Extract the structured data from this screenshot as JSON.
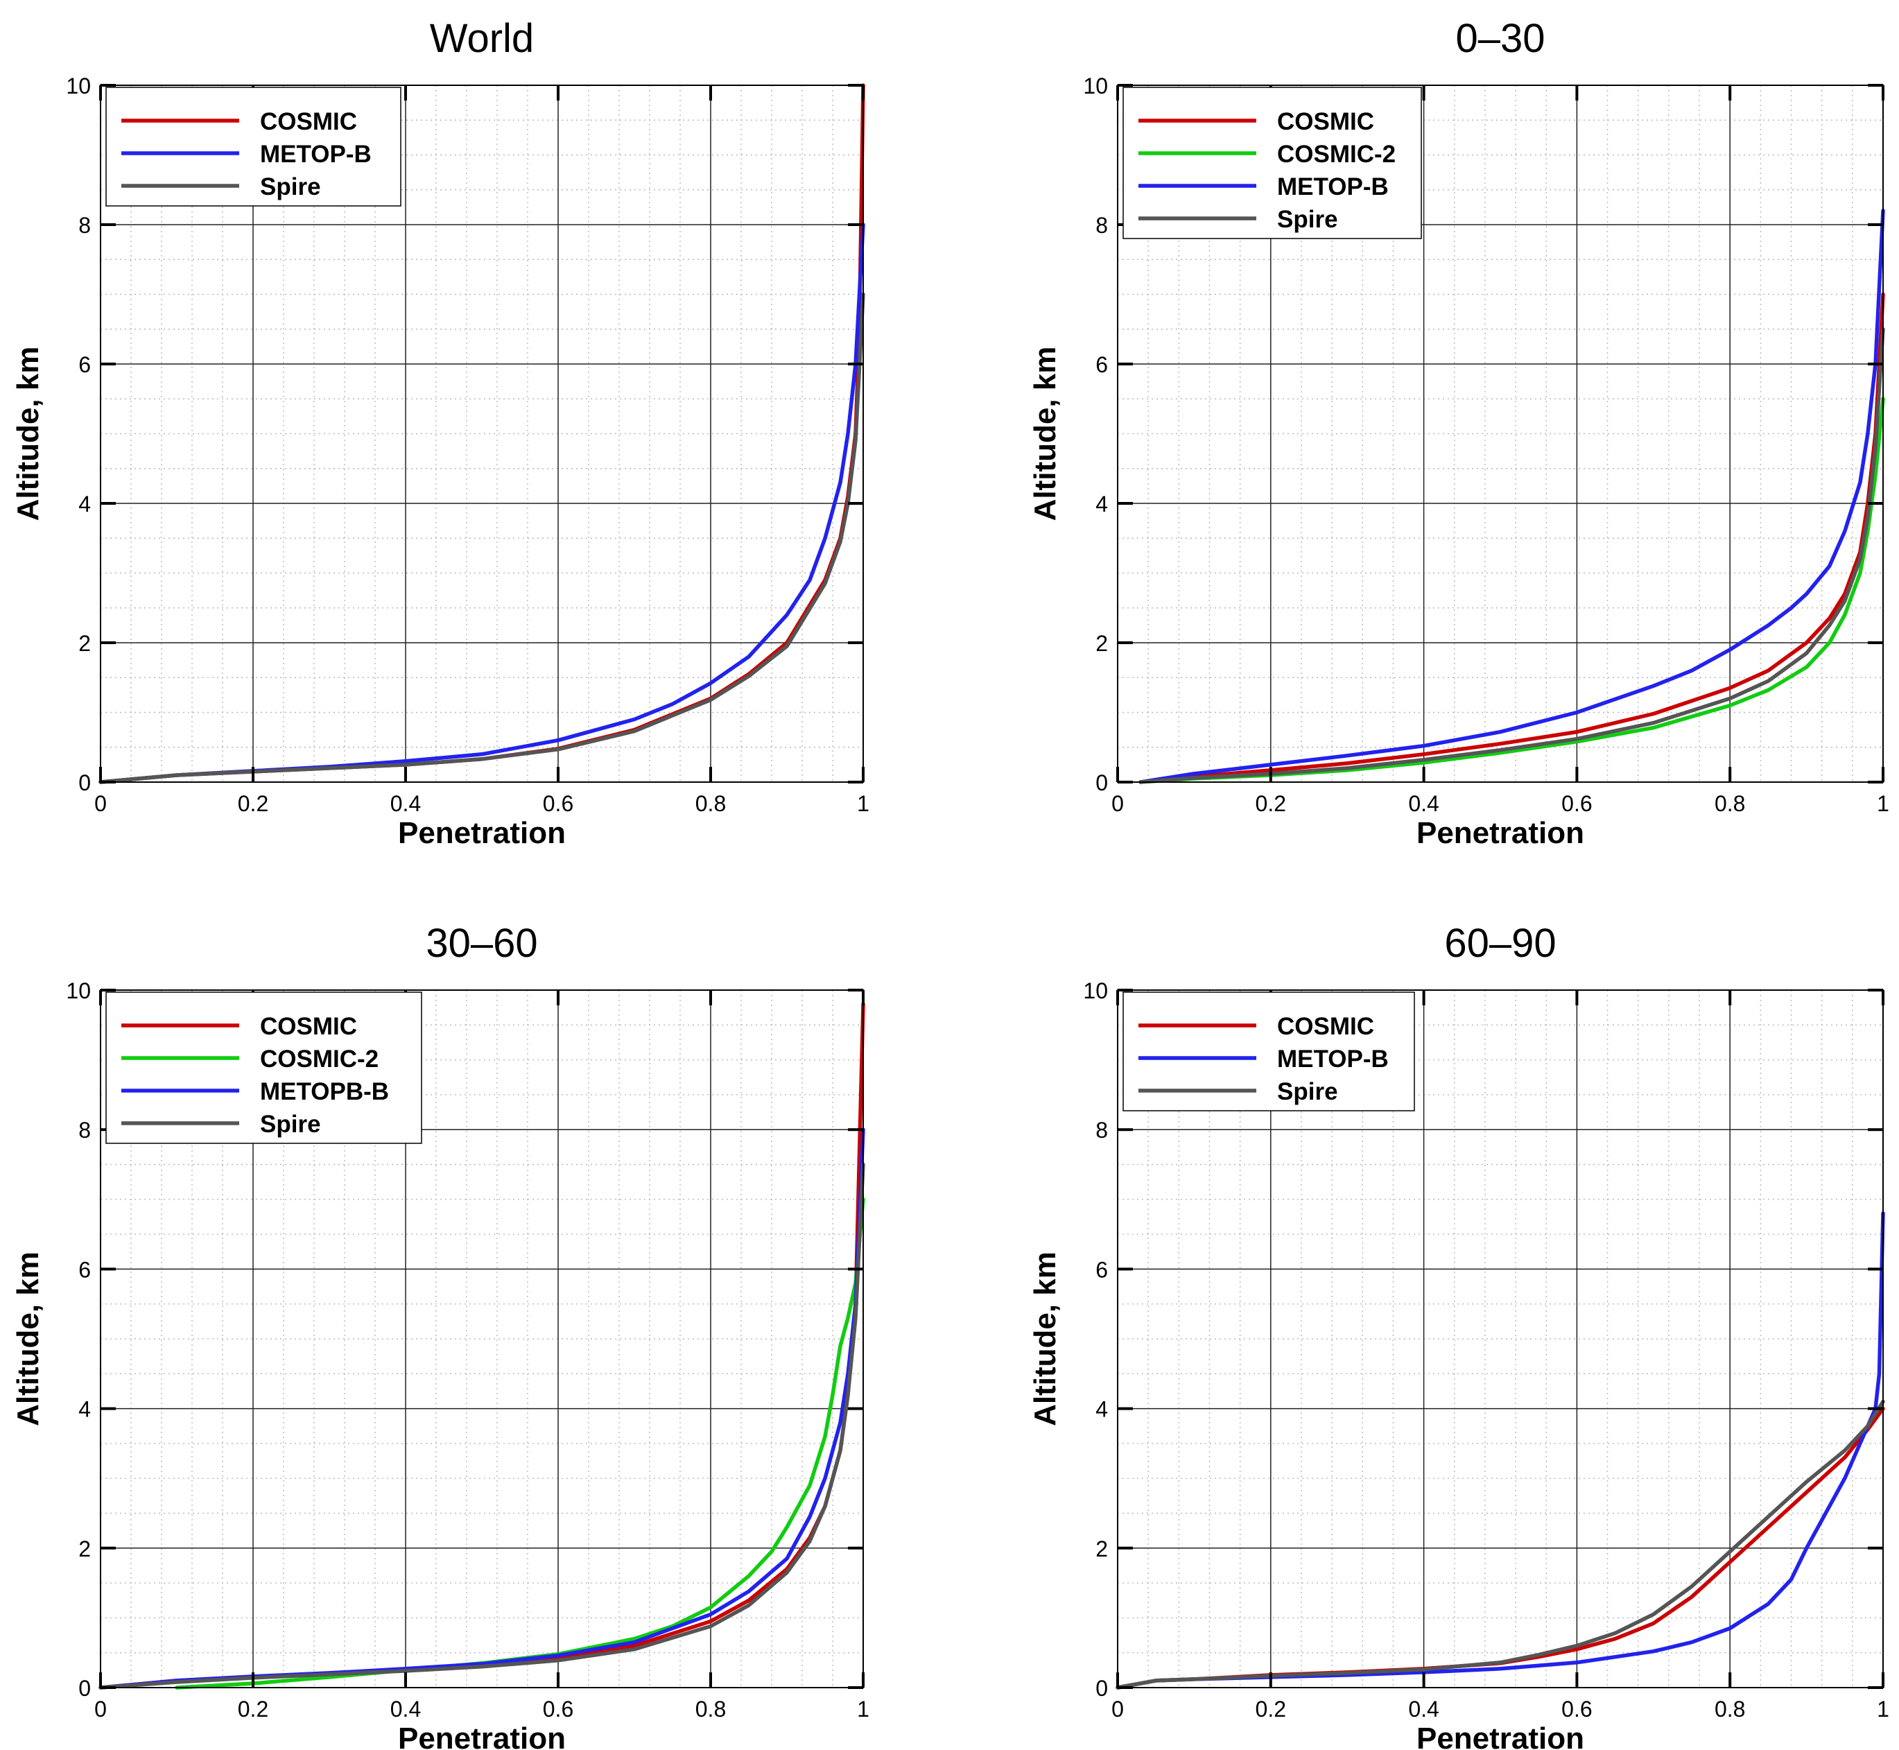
{
  "chart_data": [
    {
      "type": "line",
      "title": "World",
      "xlabel": "Penetration",
      "ylabel": "Altitude, km",
      "xlim": [
        0,
        1
      ],
      "ylim": [
        0,
        10
      ],
      "xticks": [
        "0",
        "0.2",
        "0.4",
        "0.6",
        "0.8",
        "1"
      ],
      "yticks": [
        "0",
        "2",
        "4",
        "6",
        "8",
        "10"
      ],
      "grid": true,
      "legend_position": "top-left",
      "series": [
        {
          "name": "COSMIC",
          "color": "#cc0000",
          "x": [
            0,
            0.05,
            0.1,
            0.2,
            0.3,
            0.4,
            0.5,
            0.6,
            0.7,
            0.8,
            0.85,
            0.9,
            0.95,
            0.97,
            0.98,
            0.99,
            0.995,
            1.0
          ],
          "y": [
            0,
            0.05,
            0.1,
            0.15,
            0.2,
            0.25,
            0.33,
            0.48,
            0.75,
            1.2,
            1.55,
            2.0,
            2.9,
            3.5,
            4.1,
            5.0,
            6.5,
            10.0
          ]
        },
        {
          "name": "METOP-B",
          "color": "#2222ee",
          "x": [
            0,
            0.05,
            0.1,
            0.2,
            0.3,
            0.4,
            0.5,
            0.6,
            0.7,
            0.75,
            0.8,
            0.85,
            0.9,
            0.93,
            0.95,
            0.97,
            0.98,
            0.99,
            1.0
          ],
          "y": [
            0,
            0.05,
            0.1,
            0.16,
            0.22,
            0.3,
            0.4,
            0.6,
            0.9,
            1.12,
            1.42,
            1.8,
            2.4,
            2.9,
            3.5,
            4.3,
            5.0,
            6.0,
            8.0
          ]
        },
        {
          "name": "Spire",
          "color": "#555555",
          "x": [
            0,
            0.05,
            0.1,
            0.2,
            0.3,
            0.4,
            0.5,
            0.6,
            0.7,
            0.8,
            0.85,
            0.9,
            0.95,
            0.97,
            0.98,
            0.99,
            1.0
          ],
          "y": [
            0,
            0.05,
            0.1,
            0.15,
            0.2,
            0.25,
            0.33,
            0.47,
            0.73,
            1.18,
            1.52,
            1.95,
            2.85,
            3.45,
            4.0,
            4.9,
            7.0
          ]
        }
      ]
    },
    {
      "type": "line",
      "title": "0–30",
      "xlabel": "Penetration",
      "ylabel": "Altitude, km",
      "xlim": [
        0,
        1
      ],
      "ylim": [
        0,
        10
      ],
      "xticks": [
        "0",
        "0.2",
        "0.4",
        "0.6",
        "0.8",
        "1"
      ],
      "yticks": [
        "0",
        "2",
        "4",
        "6",
        "8",
        "10"
      ],
      "grid": true,
      "legend_position": "top-left",
      "series": [
        {
          "name": "COSMIC",
          "color": "#cc0000",
          "x": [
            0.03,
            0.1,
            0.2,
            0.3,
            0.4,
            0.5,
            0.6,
            0.7,
            0.8,
            0.85,
            0.9,
            0.93,
            0.95,
            0.97,
            0.98,
            0.99,
            1.0
          ],
          "y": [
            0,
            0.08,
            0.17,
            0.27,
            0.4,
            0.55,
            0.72,
            0.98,
            1.35,
            1.6,
            2.0,
            2.35,
            2.7,
            3.3,
            4.0,
            5.0,
            7.0
          ]
        },
        {
          "name": "COSMIC-2",
          "color": "#11cc11",
          "x": [
            0.03,
            0.1,
            0.2,
            0.3,
            0.4,
            0.5,
            0.6,
            0.7,
            0.8,
            0.85,
            0.9,
            0.93,
            0.95,
            0.97,
            0.98,
            0.99,
            1.0
          ],
          "y": [
            0,
            0.05,
            0.1,
            0.17,
            0.28,
            0.42,
            0.58,
            0.78,
            1.1,
            1.32,
            1.65,
            2.0,
            2.4,
            3.0,
            3.6,
            4.4,
            5.5
          ]
        },
        {
          "name": "METOP-B",
          "color": "#2222ee",
          "x": [
            0.03,
            0.1,
            0.2,
            0.3,
            0.4,
            0.5,
            0.6,
            0.7,
            0.75,
            0.8,
            0.85,
            0.88,
            0.9,
            0.93,
            0.95,
            0.97,
            0.98,
            0.99,
            1.0
          ],
          "y": [
            0,
            0.12,
            0.25,
            0.38,
            0.52,
            0.72,
            1.0,
            1.38,
            1.6,
            1.9,
            2.25,
            2.5,
            2.7,
            3.1,
            3.6,
            4.3,
            5.0,
            6.0,
            8.2
          ]
        },
        {
          "name": "Spire",
          "color": "#555555",
          "x": [
            0.03,
            0.1,
            0.2,
            0.3,
            0.4,
            0.5,
            0.6,
            0.7,
            0.8,
            0.85,
            0.9,
            0.93,
            0.95,
            0.97,
            0.98,
            0.99,
            1.0
          ],
          "y": [
            0,
            0.06,
            0.12,
            0.2,
            0.32,
            0.46,
            0.62,
            0.85,
            1.2,
            1.45,
            1.85,
            2.25,
            2.6,
            3.2,
            3.8,
            4.8,
            6.5
          ]
        }
      ]
    },
    {
      "type": "line",
      "title": "30–60",
      "xlabel": "Penetration",
      "ylabel": "Altitude, km",
      "xlim": [
        0,
        1
      ],
      "ylim": [
        0,
        10
      ],
      "xticks": [
        "0",
        "0.2",
        "0.4",
        "0.6",
        "0.8",
        "1"
      ],
      "yticks": [
        "0",
        "2",
        "4",
        "6",
        "8",
        "10"
      ],
      "grid": true,
      "legend_position": "top-left",
      "series": [
        {
          "name": "COSMIC",
          "color": "#cc0000",
          "x": [
            0,
            0.05,
            0.1,
            0.2,
            0.3,
            0.4,
            0.5,
            0.6,
            0.7,
            0.8,
            0.85,
            0.9,
            0.93,
            0.95,
            0.97,
            0.98,
            0.99,
            1.0
          ],
          "y": [
            0,
            0.05,
            0.1,
            0.15,
            0.2,
            0.26,
            0.32,
            0.42,
            0.6,
            0.95,
            1.25,
            1.7,
            2.15,
            2.6,
            3.4,
            4.2,
            5.5,
            9.8
          ]
        },
        {
          "name": "COSMIC-2",
          "color": "#11cc11",
          "x": [
            0.1,
            0.2,
            0.3,
            0.4,
            0.5,
            0.6,
            0.7,
            0.75,
            0.8,
            0.85,
            0.88,
            0.9,
            0.93,
            0.95,
            0.96,
            0.97,
            0.98,
            0.99,
            1.0
          ],
          "y": [
            0,
            0.06,
            0.15,
            0.25,
            0.35,
            0.48,
            0.7,
            0.88,
            1.15,
            1.6,
            1.95,
            2.3,
            2.9,
            3.6,
            4.2,
            4.9,
            5.3,
            5.8,
            7.0
          ]
        },
        {
          "name": "METOPB-B",
          "color": "#2222ee",
          "x": [
            0,
            0.05,
            0.1,
            0.2,
            0.3,
            0.4,
            0.5,
            0.6,
            0.7,
            0.8,
            0.85,
            0.9,
            0.93,
            0.95,
            0.97,
            0.98,
            0.99,
            1.0
          ],
          "y": [
            0,
            0.05,
            0.1,
            0.16,
            0.21,
            0.27,
            0.34,
            0.46,
            0.65,
            1.05,
            1.38,
            1.85,
            2.45,
            3.0,
            3.8,
            4.5,
            5.5,
            8.0
          ]
        },
        {
          "name": "Spire",
          "color": "#555555",
          "x": [
            0,
            0.05,
            0.1,
            0.2,
            0.3,
            0.4,
            0.5,
            0.6,
            0.7,
            0.8,
            0.85,
            0.9,
            0.93,
            0.95,
            0.97,
            0.98,
            0.99,
            1.0
          ],
          "y": [
            0,
            0.04,
            0.08,
            0.14,
            0.19,
            0.24,
            0.3,
            0.39,
            0.55,
            0.88,
            1.18,
            1.65,
            2.1,
            2.6,
            3.4,
            4.2,
            5.3,
            7.5
          ]
        }
      ]
    },
    {
      "type": "line",
      "title": "60–90",
      "xlabel": "Penetration",
      "ylabel": "Altitude, km",
      "xlim": [
        0,
        1
      ],
      "ylim": [
        0,
        10
      ],
      "xticks": [
        "0",
        "0.2",
        "0.4",
        "0.6",
        "0.8",
        "1"
      ],
      "yticks": [
        "0",
        "2",
        "4",
        "6",
        "8",
        "10"
      ],
      "grid": true,
      "legend_position": "top-left",
      "series": [
        {
          "name": "COSMIC",
          "color": "#cc0000",
          "x": [
            0,
            0.05,
            0.1,
            0.2,
            0.3,
            0.4,
            0.5,
            0.55,
            0.6,
            0.65,
            0.7,
            0.75,
            0.8,
            0.85,
            0.9,
            0.95,
            0.98,
            1.0
          ],
          "y": [
            0,
            0.1,
            0.12,
            0.18,
            0.22,
            0.27,
            0.35,
            0.44,
            0.55,
            0.7,
            0.92,
            1.3,
            1.8,
            2.3,
            2.8,
            3.3,
            3.7,
            4.0
          ]
        },
        {
          "name": "METOP-B",
          "color": "#2222ee",
          "x": [
            0,
            0.05,
            0.1,
            0.2,
            0.3,
            0.4,
            0.5,
            0.6,
            0.7,
            0.75,
            0.8,
            0.85,
            0.88,
            0.9,
            0.93,
            0.95,
            0.97,
            0.99,
            0.995,
            1.0
          ],
          "y": [
            0,
            0.1,
            0.12,
            0.15,
            0.18,
            0.22,
            0.27,
            0.36,
            0.52,
            0.65,
            0.85,
            1.2,
            1.55,
            2.0,
            2.6,
            3.0,
            3.5,
            4.0,
            4.5,
            6.8
          ]
        },
        {
          "name": "Spire",
          "color": "#555555",
          "x": [
            0,
            0.05,
            0.1,
            0.2,
            0.3,
            0.4,
            0.5,
            0.55,
            0.6,
            0.65,
            0.7,
            0.75,
            0.8,
            0.85,
            0.9,
            0.95,
            0.98,
            1.0
          ],
          "y": [
            0,
            0.1,
            0.12,
            0.17,
            0.21,
            0.26,
            0.36,
            0.47,
            0.6,
            0.78,
            1.05,
            1.45,
            1.95,
            2.45,
            2.95,
            3.4,
            3.75,
            4.1
          ]
        }
      ]
    }
  ]
}
